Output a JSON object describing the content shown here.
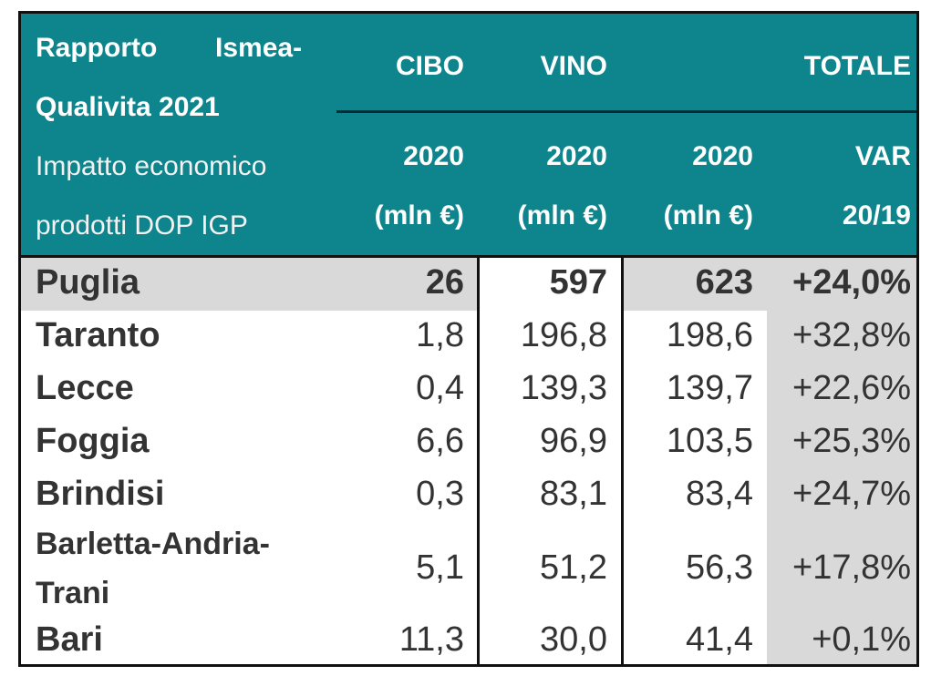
{
  "header": {
    "title_line1_a": "Rapporto",
    "title_line1_b": "Ismea-",
    "title_line2": "Qualivita 2021",
    "subtitle_line1": "Impatto economico",
    "subtitle_line2": "prodotti DOP IGP",
    "col_cibo": "CIBO",
    "col_vino": "VINO",
    "col_totale": "TOTALE",
    "year_cibo": "2020",
    "year_vino": "2020",
    "year_totale": "2020",
    "unit_cibo": "(mln €)",
    "unit_vino": "(mln €)",
    "unit_totale": "(mln €)",
    "var_label": "VAR",
    "var_period": "20/19"
  },
  "rows": [
    {
      "name": "Puglia",
      "cibo": "26",
      "vino": "597",
      "totale": "623",
      "var": "+24,0%"
    },
    {
      "name": "Taranto",
      "cibo": "1,8",
      "vino": "196,8",
      "totale": "198,6",
      "var": "+32,8%"
    },
    {
      "name": "Lecce",
      "cibo": "0,4",
      "vino": "139,3",
      "totale": "139,7",
      "var": "+22,6%"
    },
    {
      "name": "Foggia",
      "cibo": "6,6",
      "vino": "96,9",
      "totale": "103,5",
      "var": "+25,3%"
    },
    {
      "name": "Brindisi",
      "cibo": "0,3",
      "vino": "83,1",
      "totale": "83,4",
      "var": "+24,7%"
    },
    {
      "name_line1": "Barletta-Andria-",
      "name_line2": "Trani",
      "cibo": "5,1",
      "vino": "51,2",
      "totale": "56,3",
      "var": "+17,8%"
    },
    {
      "name": "Bari",
      "cibo": "11,3",
      "vino": "30,0",
      "totale": "41,4",
      "var": "+0,1%"
    }
  ],
  "colors": {
    "header_bg": "#0e858c",
    "shade": "#d9d9d9",
    "border": "#111111"
  }
}
